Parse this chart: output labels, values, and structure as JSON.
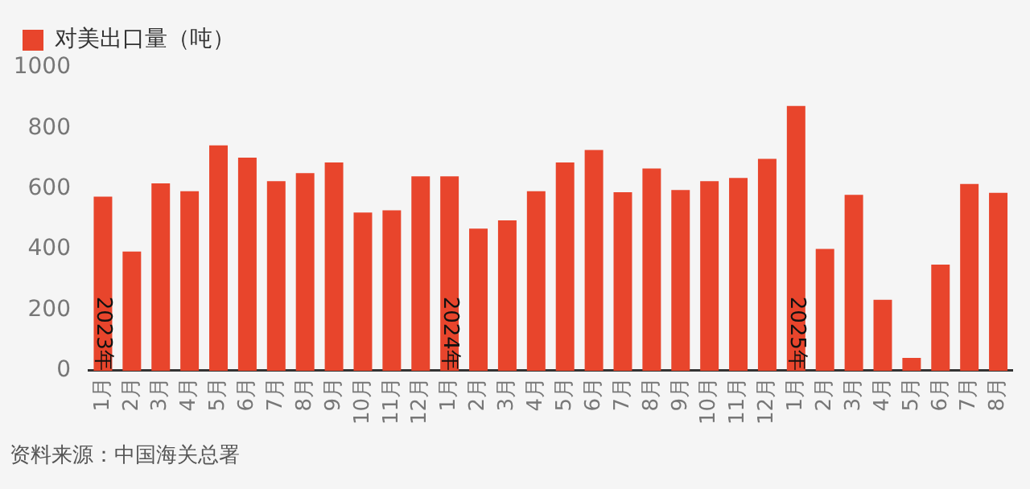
{
  "chart_data": {
    "type": "bar",
    "categories": [
      "1月",
      "2月",
      "3月",
      "4月",
      "5月",
      "6月",
      "7月",
      "8月",
      "9月",
      "10月",
      "11月",
      "12月",
      "1月",
      "2月",
      "3月",
      "4月",
      "5月",
      "6月",
      "7月",
      "8月",
      "9月",
      "10月",
      "11月",
      "12月",
      "1月",
      "2月",
      "3月",
      "4月",
      "5月",
      "6月",
      "7月",
      "8月"
    ],
    "series": [
      {
        "name": "对美出口量（吨）",
        "color": "#e8452c",
        "values": [
          574,
          393,
          618,
          592,
          743,
          703,
          625,
          652,
          687,
          522,
          529,
          641,
          641,
          469,
          496,
          592,
          687,
          728,
          589,
          667,
          596,
          625,
          636,
          699,
          873,
          402,
          580,
          234,
          42,
          350,
          616,
          587
        ]
      }
    ],
    "ylim": [
      0,
      1000
    ],
    "yticks": [
      0,
      200,
      400,
      600,
      800,
      1000
    ],
    "legend": "top left",
    "annotations": [
      "2023年",
      "2024年",
      "2025年",
      "资料来源：中国海关总署"
    ]
  }
}
